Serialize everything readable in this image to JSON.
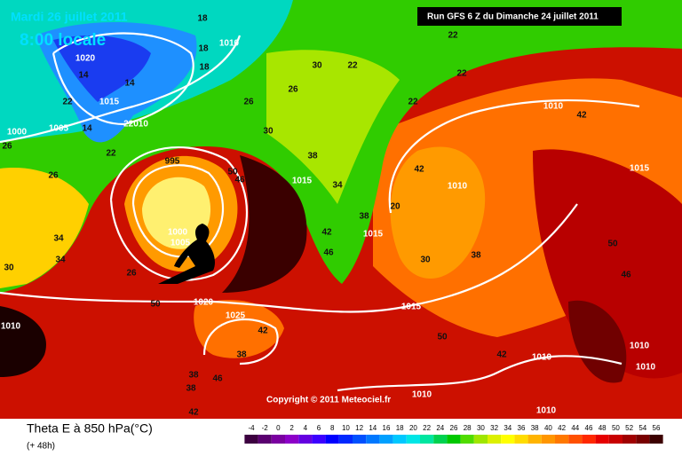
{
  "header": {
    "date": "Mardi 26 juillet 2011",
    "time": "8:00 locale",
    "run": "Run GFS 6 Z du Dimanche 24 juillet 2011"
  },
  "copyright": "Copyright © 2011 Meteociel.fr",
  "footer": {
    "title": "Theta E à 850 hPa(°C)",
    "lead": "(+ 48h)"
  },
  "legend": {
    "ticks": [
      -4,
      -2,
      0,
      2,
      4,
      6,
      8,
      10,
      12,
      14,
      16,
      18,
      20,
      22,
      24,
      26,
      28,
      30,
      32,
      34,
      36,
      38,
      40,
      42,
      44,
      46,
      48,
      50,
      52,
      54,
      56
    ],
    "colors": [
      "#3c0040",
      "#5a0070",
      "#7a00a0",
      "#8c00c8",
      "#6400e0",
      "#3c00ff",
      "#0000ff",
      "#0028ff",
      "#0050ff",
      "#0078ff",
      "#00a0ff",
      "#00c8ff",
      "#00e6e6",
      "#00e6a0",
      "#00d250",
      "#00c800",
      "#50dc00",
      "#a0e600",
      "#dcf000",
      "#ffff00",
      "#ffdc00",
      "#ffb400",
      "#ff9600",
      "#ff7800",
      "#ff5000",
      "#ff2800",
      "#e60000",
      "#c80000",
      "#a00000",
      "#780000",
      "#3c0000"
    ]
  },
  "map_labels": [
    "1020",
    "14",
    "14",
    "1015",
    "22",
    "14",
    "22010",
    "22",
    "1005",
    "1000",
    "26",
    "26",
    "995",
    "50",
    "46",
    "1000",
    "1005",
    "1020",
    "1025",
    "42",
    "38",
    "50",
    "34",
    "34",
    "30",
    "26",
    "1010",
    "1015",
    "1010",
    "1015",
    "30",
    "22",
    "22",
    "22",
    "1010",
    "42",
    "1015",
    "42",
    "38",
    "30",
    "50",
    "46",
    "50",
    "1010",
    "1010",
    "1010",
    "42",
    "38",
    "46",
    "38",
    "42",
    "18",
    "18",
    "1010",
    "18",
    "26",
    "26",
    "30",
    "38",
    "1015",
    "34",
    "42",
    "46",
    "38",
    "20",
    "22",
    "1010",
    "1010"
  ]
}
